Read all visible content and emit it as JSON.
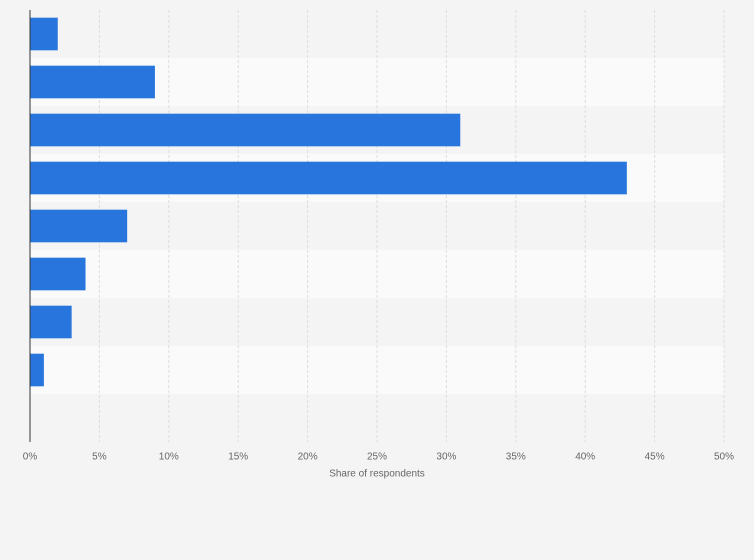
{
  "chart_data": {
    "type": "barh",
    "categories": [
      null,
      null,
      null,
      null,
      null,
      null,
      null,
      null,
      null
    ],
    "values": [
      2,
      9,
      31,
      43,
      7,
      4,
      3,
      1,
      0
    ],
    "color": "#2876dd",
    "x_label": "Share of respondents",
    "xlim": [
      0,
      50
    ],
    "xticks": [
      {
        "value": 0,
        "label": "0%"
      },
      {
        "value": 5,
        "label": "5%"
      },
      {
        "value": 10,
        "label": "10%"
      },
      {
        "value": 15,
        "label": "15%"
      },
      {
        "value": 20,
        "label": "20%"
      },
      {
        "value": 25,
        "label": "25%"
      },
      {
        "value": 30,
        "label": "30%"
      },
      {
        "value": 35,
        "label": "35%"
      },
      {
        "value": 40,
        "label": "40%"
      },
      {
        "value": 45,
        "label": "45%"
      },
      {
        "value": 50,
        "label": "50%"
      }
    ],
    "grid": true
  }
}
